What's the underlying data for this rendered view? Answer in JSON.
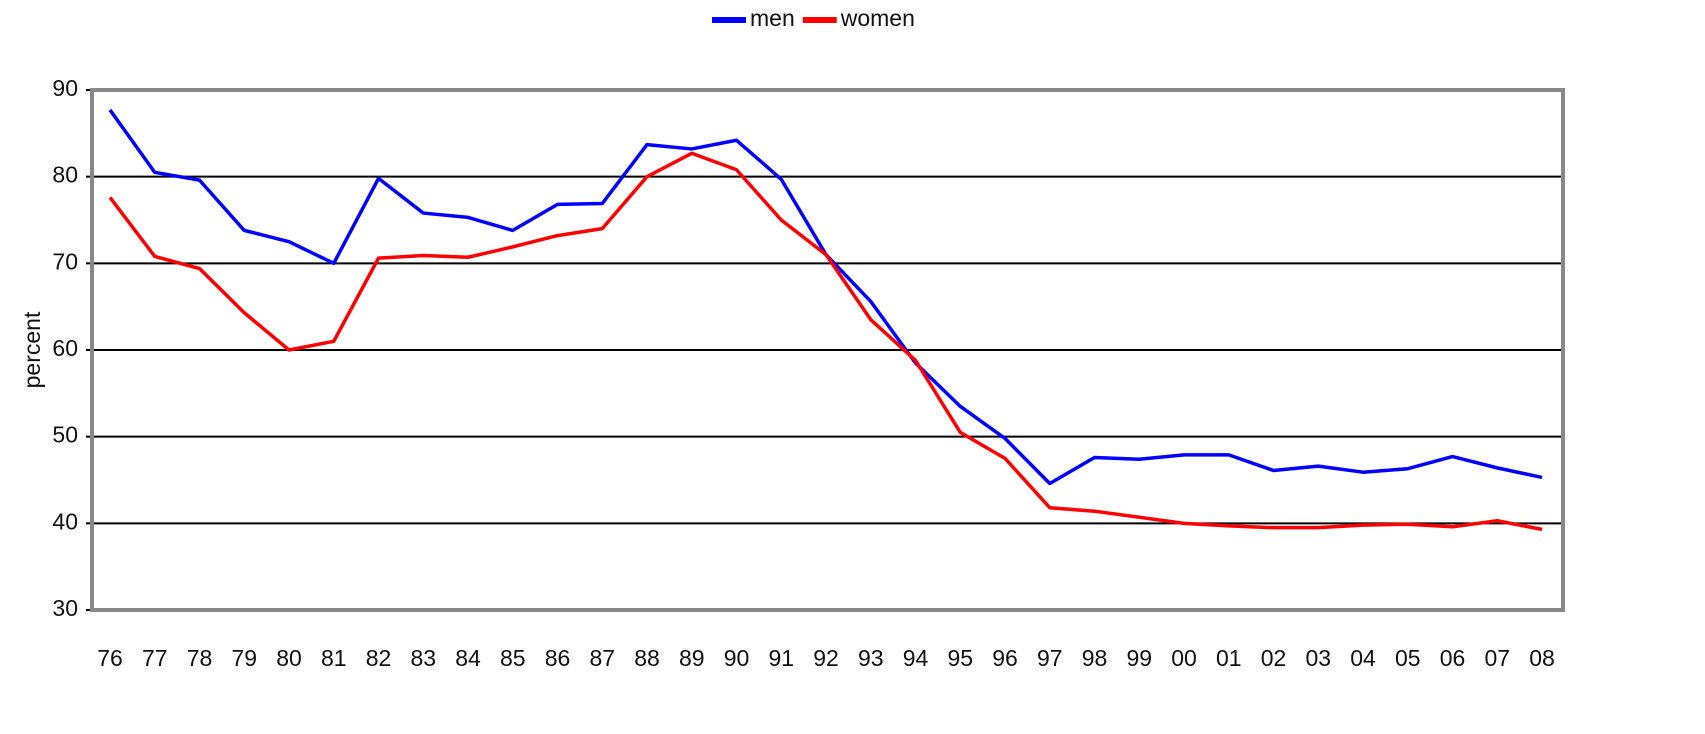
{
  "chart_data": {
    "type": "line",
    "categories": [
      "76",
      "77",
      "78",
      "79",
      "80",
      "81",
      "82",
      "83",
      "84",
      "85",
      "86",
      "87",
      "88",
      "89",
      "90",
      "91",
      "92",
      "93",
      "94",
      "95",
      "96",
      "97",
      "98",
      "99",
      "00",
      "01",
      "02",
      "03",
      "04",
      "05",
      "06",
      "07",
      "08"
    ],
    "series": [
      {
        "name": "men",
        "color": "#0000ff",
        "values": [
          87.7,
          80.5,
          79.6,
          73.8,
          72.5,
          70.0,
          79.8,
          75.8,
          75.3,
          73.8,
          76.8,
          76.9,
          83.7,
          83.2,
          84.2,
          79.7,
          71.0,
          65.6,
          58.5,
          53.5,
          49.8,
          44.6,
          47.6,
          47.4,
          47.9,
          47.9,
          46.1,
          46.6,
          45.9,
          46.3,
          47.7,
          46.4,
          45.3
        ]
      },
      {
        "name": "women",
        "color": "#ff0000",
        "values": [
          77.6,
          70.8,
          69.4,
          64.3,
          60.0,
          61.0,
          70.6,
          70.9,
          70.7,
          71.9,
          73.2,
          74.0,
          80.0,
          82.7,
          80.8,
          75.0,
          71.0,
          63.5,
          58.8,
          50.5,
          47.5,
          41.8,
          41.4,
          40.7,
          40.0,
          39.7,
          39.5,
          39.5,
          39.8,
          39.9,
          39.6,
          40.3,
          39.3
        ]
      }
    ],
    "y_label": "percent",
    "ylim": [
      30,
      90
    ],
    "yticks": [
      30,
      40,
      50,
      60,
      70,
      80,
      90
    ],
    "grid": true,
    "legend": "top"
  }
}
